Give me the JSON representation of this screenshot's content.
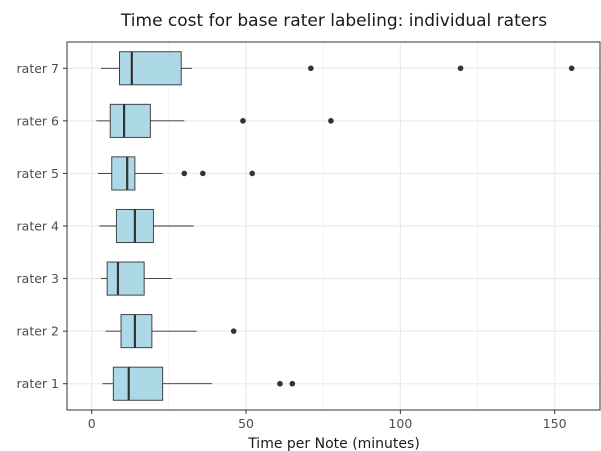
{
  "chart_data": {
    "type": "boxplot",
    "title": "Time cost for base rater labeling: individual raters",
    "xlabel": "Time per Note (minutes)",
    "ylabel": "",
    "xlim": [
      -8,
      165
    ],
    "xticks": [
      0,
      50,
      100,
      150
    ],
    "grid": true,
    "orientation": "horizontal",
    "colors": {
      "box_fill": "#add8e6",
      "stroke": "#333333",
      "grid": "#ebebeb",
      "outlier": "#333333",
      "panel_border": "#333333"
    },
    "categories": [
      "rater 1",
      "rater 2",
      "rater 3",
      "rater 4",
      "rater 5",
      "rater 6",
      "rater 7"
    ],
    "series": [
      {
        "category": "rater 1",
        "whisker_low": 3.5,
        "q1": 7,
        "median": 12,
        "q3": 23,
        "whisker_high": 39,
        "outliers": [
          61,
          65
        ]
      },
      {
        "category": "rater 2",
        "whisker_low": 4.5,
        "q1": 9.5,
        "median": 14,
        "q3": 19.5,
        "whisker_high": 34,
        "outliers": [
          46
        ]
      },
      {
        "category": "rater 3",
        "whisker_low": 3,
        "q1": 5,
        "median": 8.5,
        "q3": 17,
        "whisker_high": 26,
        "outliers": []
      },
      {
        "category": "rater 4",
        "whisker_low": 2.5,
        "q1": 8,
        "median": 14,
        "q3": 20,
        "whisker_high": 33,
        "outliers": []
      },
      {
        "category": "rater 5",
        "whisker_low": 2,
        "q1": 6.5,
        "median": 11.5,
        "q3": 14,
        "whisker_high": 23,
        "outliers": [
          30,
          36,
          52
        ]
      },
      {
        "category": "rater 6",
        "whisker_low": 1.5,
        "q1": 6,
        "median": 10.5,
        "q3": 19,
        "whisker_high": 30,
        "outliers": [
          49,
          77.5
        ]
      },
      {
        "category": "rater 7",
        "whisker_low": 3,
        "q1": 9,
        "median": 13,
        "q3": 29,
        "whisker_high": 32.5,
        "outliers": [
          71,
          119.5,
          155.5
        ]
      }
    ]
  }
}
